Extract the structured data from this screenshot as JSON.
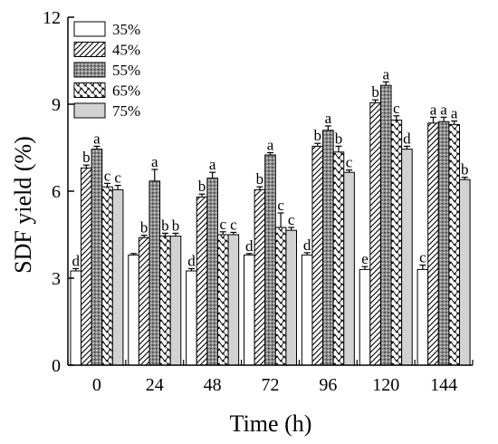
{
  "chart_data": {
    "type": "bar",
    "title": "",
    "xlabel": "Time (h)",
    "ylabel": "SDF yield (%)",
    "ylim": [
      0,
      12
    ],
    "yticks": [
      0,
      3,
      6,
      9,
      12
    ],
    "categories": [
      "0",
      "24",
      "48",
      "72",
      "96",
      "120",
      "144"
    ],
    "legend_position": "top-left",
    "grid": false,
    "series": [
      {
        "name": "35%",
        "pattern": "white",
        "values": [
          3.25,
          3.8,
          3.25,
          3.8,
          3.8,
          3.3,
          3.3
        ],
        "errors": [
          0.08,
          0.05,
          0.08,
          0.05,
          0.08,
          0.1,
          0.15
        ],
        "labels": [
          "d",
          "",
          "d",
          "d",
          "d",
          "e",
          "c"
        ]
      },
      {
        "name": "45%",
        "pattern": "diagonal",
        "values": [
          6.8,
          4.4,
          5.8,
          6.05,
          7.55,
          9.05,
          8.35
        ],
        "errors": [
          0.1,
          0.08,
          0.1,
          0.1,
          0.1,
          0.1,
          0.2
        ],
        "labels": [
          "b",
          "b",
          "b",
          "b",
          "b",
          "b",
          "a"
        ]
      },
      {
        "name": "55%",
        "pattern": "dotted-gray",
        "values": [
          7.45,
          6.35,
          6.45,
          7.25,
          8.1,
          9.65,
          8.4
        ],
        "errors": [
          0.1,
          0.4,
          0.2,
          0.08,
          0.15,
          0.12,
          0.15
        ],
        "labels": [
          "a",
          "a",
          "a",
          "a",
          "a",
          "a",
          "a"
        ]
      },
      {
        "name": "65%",
        "pattern": "zigzag",
        "values": [
          6.15,
          4.45,
          4.5,
          4.75,
          7.35,
          8.45,
          8.3
        ],
        "errors": [
          0.12,
          0.1,
          0.1,
          0.5,
          0.2,
          0.15,
          0.12
        ],
        "labels": [
          "c",
          "b",
          "c",
          "c",
          "b",
          "c",
          "a"
        ]
      },
      {
        "name": "75%",
        "pattern": "light-gray",
        "values": [
          6.05,
          4.45,
          4.5,
          4.65,
          6.65,
          7.45,
          6.4
        ],
        "errors": [
          0.15,
          0.1,
          0.08,
          0.1,
          0.08,
          0.1,
          0.08
        ],
        "labels": [
          "c",
          "b",
          "c",
          "c",
          "c",
          "d",
          "b"
        ]
      }
    ]
  }
}
